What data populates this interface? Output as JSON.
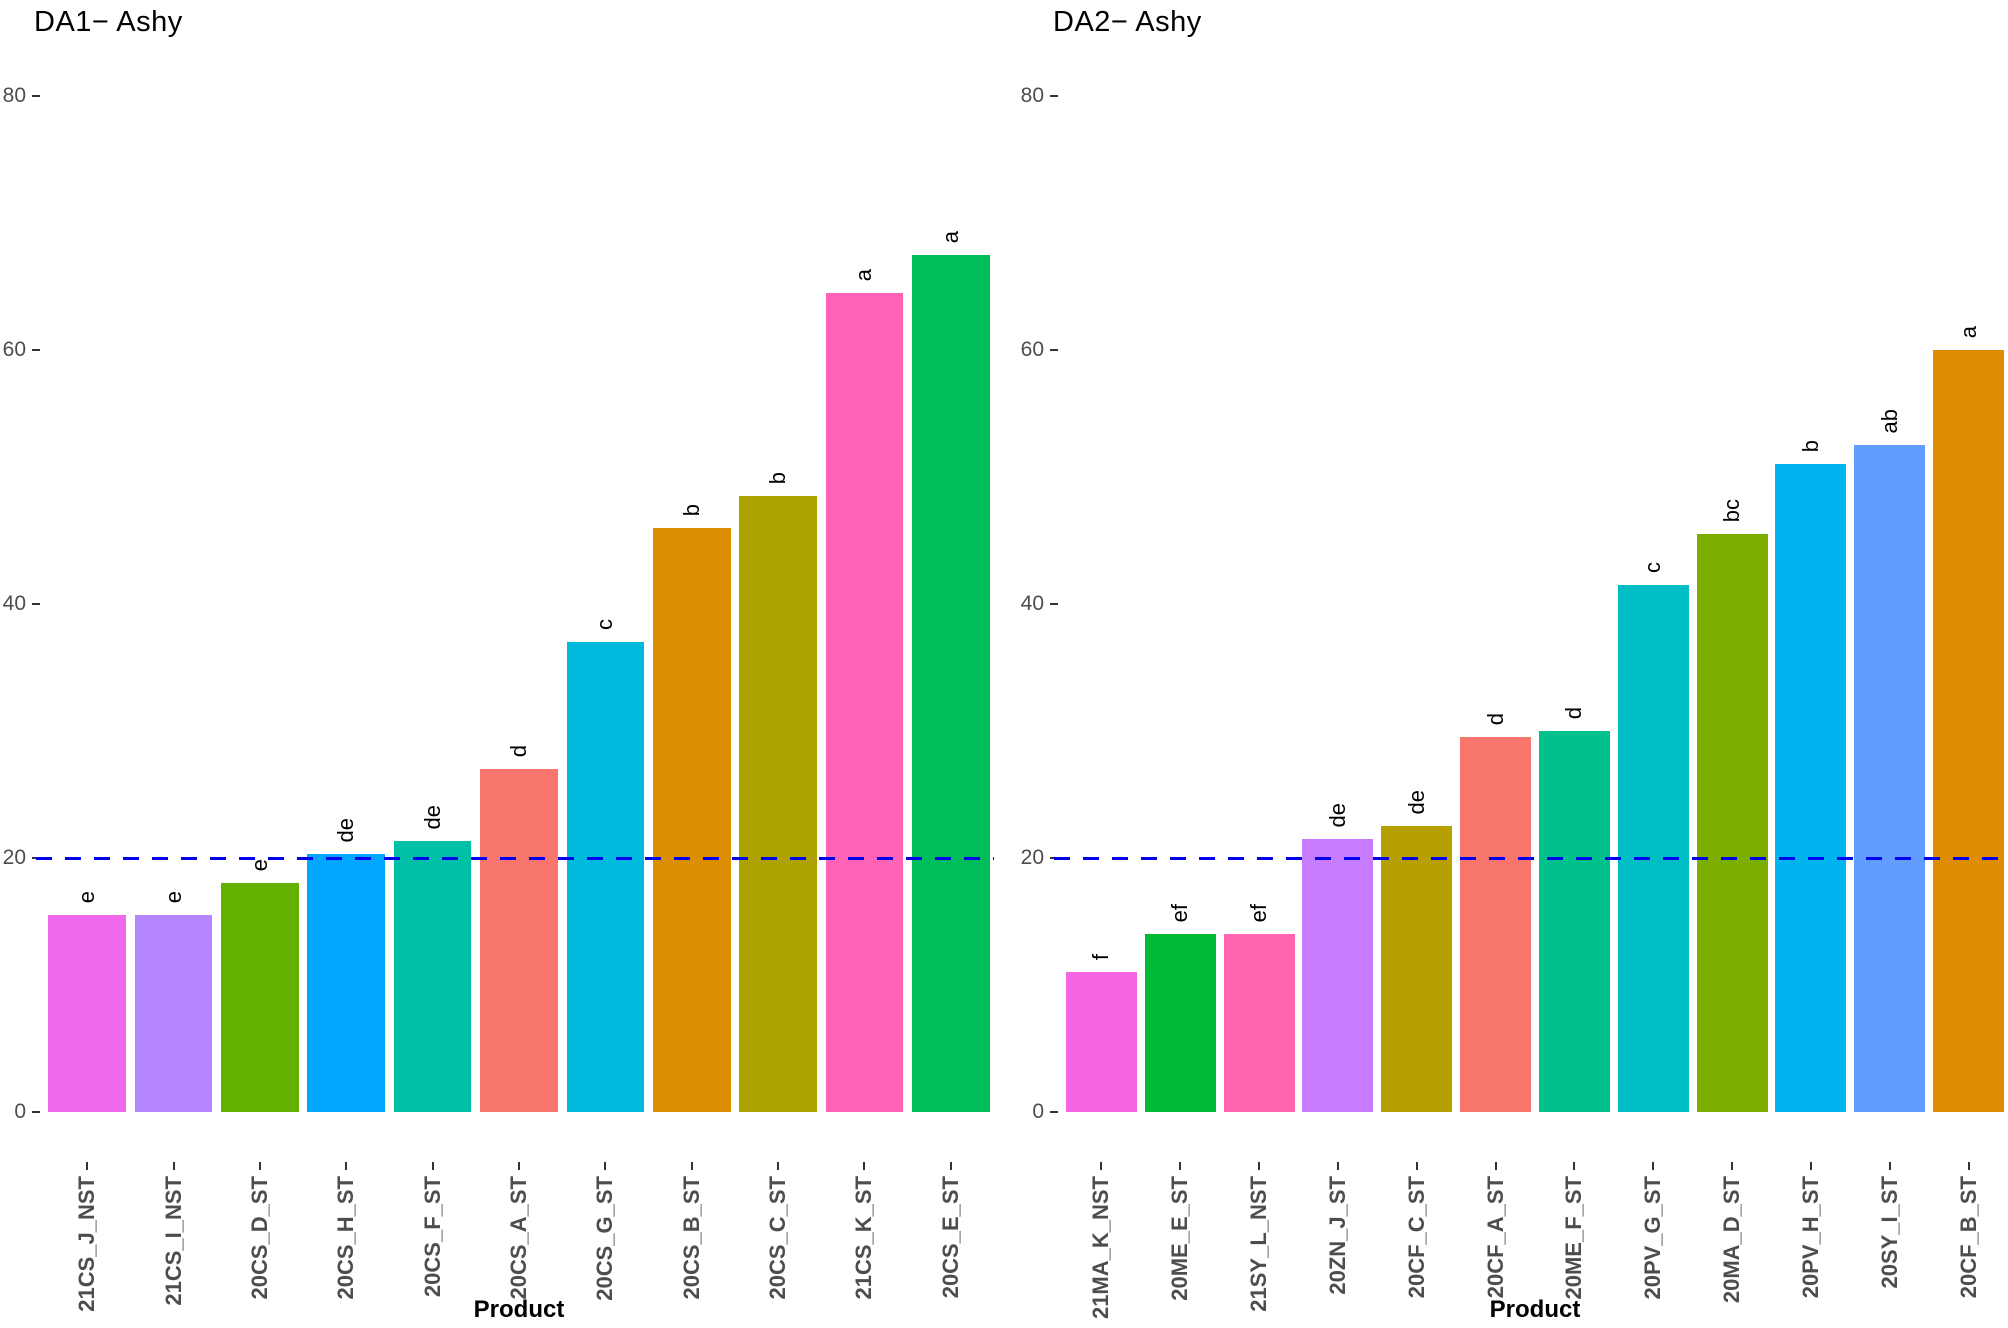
{
  "figure": {
    "background": "#FFFFFF",
    "axis_text_color": "#4D4D4D",
    "tick_color": "#333333",
    "label_text_color": "#000000"
  },
  "chart_data": [
    {
      "type": "bar",
      "title": "DA1− Ashy",
      "xlabel": "Product",
      "ylabel": "",
      "ylim": [
        0,
        80
      ],
      "yticks": [
        0,
        20,
        40,
        60,
        80
      ],
      "grid": "off",
      "legend": "none",
      "refline": {
        "y": 20,
        "color": "#0000EE",
        "style": "dashed"
      },
      "categories": [
        "21CS_J_NST",
        "21CS_I_NST",
        "20CS_D_ST",
        "20CS_H_ST",
        "20CS_F_ST",
        "20CS_A_ST",
        "20CS_G_ST",
        "20CS_B_ST",
        "20CS_C_ST",
        "21CS_K_ST",
        "20CS_E_ST"
      ],
      "values": [
        15.5,
        15.5,
        18,
        20.3,
        21.3,
        27,
        37,
        46,
        48.5,
        64.5,
        67.5
      ],
      "sig_letters": [
        "e",
        "e",
        "e",
        "de",
        "de",
        "d",
        "c",
        "b",
        "b",
        "a",
        "a"
      ],
      "bar_colors": [
        "#EF67EB",
        "#B385FF",
        "#64B200",
        "#00A6FF",
        "#00C1A7",
        "#F8766D",
        "#00BADE",
        "#DB8E00",
        "#AEA200",
        "#FF63B6",
        "#00BD5C"
      ]
    },
    {
      "type": "bar",
      "title": "DA2− Ashy",
      "xlabel": "Product",
      "ylabel": "",
      "ylim": [
        0,
        80
      ],
      "yticks": [
        0,
        20,
        40,
        60,
        80
      ],
      "grid": "off",
      "legend": "none",
      "refline": {
        "y": 20,
        "color": "#0000EE",
        "style": "dashed"
      },
      "categories": [
        "21MA_K_NST",
        "20ME_E_ST",
        "21SY_L_NST",
        "20ZN_J_ST",
        "20CF_C_ST",
        "20CF_A_ST",
        "20ME_F_ST",
        "20PV_G_ST",
        "20MA_D_ST",
        "20PV_H_ST",
        "20SY_I_ST",
        "20CF_B_ST"
      ],
      "values": [
        11,
        14,
        14,
        21.5,
        22.5,
        29.5,
        30,
        41.5,
        45.5,
        51,
        52.5,
        60
      ],
      "sig_letters": [
        "f",
        "ef",
        "ef",
        "de",
        "de",
        "d",
        "d",
        "c",
        "bc",
        "b",
        "ab",
        "a"
      ],
      "bar_colors": [
        "#F564E3",
        "#00BA38",
        "#FF64B0",
        "#C77CFF",
        "#B79F00",
        "#F8766D",
        "#00C08B",
        "#00BFC4",
        "#7CAE00",
        "#00B4F0",
        "#619CFF",
        "#DE8C00"
      ]
    }
  ]
}
